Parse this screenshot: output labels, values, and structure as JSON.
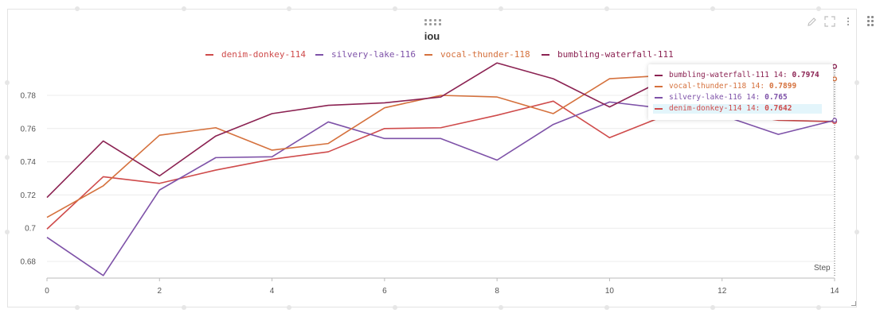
{
  "panel": {
    "title": "iou",
    "step_label": "Step"
  },
  "icons": [
    "drag-handle-icon",
    "pencil-icon",
    "fullscreen-icon",
    "more-vertical-icon",
    "side-menu-icon",
    "resize-corner-icon"
  ],
  "chart_data": {
    "type": "line",
    "title": "iou",
    "xlabel": "Step",
    "ylabel": "",
    "xlim": [
      0,
      14
    ],
    "ylim": [
      0.67,
      0.795
    ],
    "x_ticks": [
      0,
      2,
      4,
      6,
      8,
      10,
      12,
      14
    ],
    "y_ticks": [
      0.68,
      0.7,
      0.72,
      0.74,
      0.76,
      0.78
    ],
    "y_tick_labels": [
      "0.68",
      "0.7",
      "0.72",
      "0.74",
      "0.76",
      "0.78"
    ],
    "grid": true,
    "legend_position": "top",
    "x": [
      0,
      1,
      2,
      3,
      4,
      5,
      6,
      7,
      8,
      9,
      10,
      11,
      12,
      13,
      14
    ],
    "series": [
      {
        "name": "denim-donkey-114",
        "color": "#cf4b4b",
        "values": [
          0.6995,
          0.731,
          0.727,
          0.735,
          0.7415,
          0.746,
          0.76,
          0.7605,
          0.768,
          0.7765,
          0.7545,
          0.768,
          0.77,
          0.765,
          0.7642
        ]
      },
      {
        "name": "silvery-lake-116",
        "color": "#7e52a8",
        "values": [
          0.6945,
          0.6715,
          0.723,
          0.7425,
          0.743,
          0.764,
          0.754,
          0.754,
          0.741,
          0.7625,
          0.776,
          0.772,
          0.768,
          0.7565,
          0.765
        ]
      },
      {
        "name": "vocal-thunder-118",
        "color": "#d5713d",
        "values": [
          0.7065,
          0.7255,
          0.756,
          0.7605,
          0.747,
          0.751,
          0.7725,
          0.78,
          0.779,
          0.769,
          0.79,
          0.792,
          0.789,
          0.789,
          0.7899
        ]
      },
      {
        "name": "bumbling-waterfall-111",
        "color": "#8b2252",
        "values": [
          0.7185,
          0.7525,
          0.7315,
          0.7555,
          0.769,
          0.774,
          0.7755,
          0.779,
          0.7995,
          0.79,
          0.773,
          0.79,
          0.792,
          0.795,
          0.7974
        ]
      }
    ],
    "tooltip": {
      "step": 14,
      "rows": [
        {
          "label": "bumbling-waterfall-111 14:",
          "value": "0.7974",
          "color": "#8b2252",
          "highlight": false
        },
        {
          "label": "vocal-thunder-118 14:",
          "value": "0.7899",
          "color": "#d5713d",
          "highlight": false
        },
        {
          "label": "silvery-lake-116 14:",
          "value": "0.765",
          "color": "#7e52a8",
          "highlight": false
        },
        {
          "label": "denim-donkey-114 14:",
          "value": "0.7642",
          "color": "#cf4b4b",
          "highlight": true
        }
      ]
    }
  }
}
